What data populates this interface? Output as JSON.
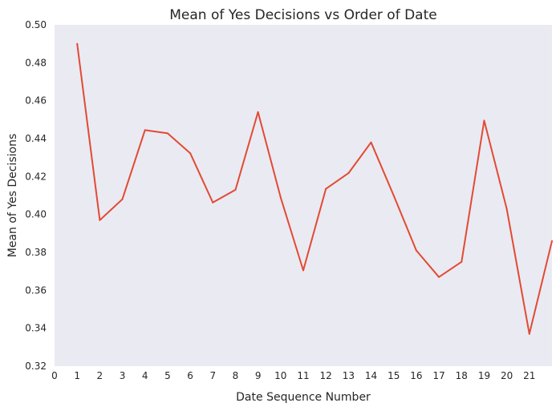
{
  "chart_data": {
    "type": "line",
    "title": "Mean of Yes Decisions vs Order of Date",
    "xlabel": "Date Sequence Number",
    "ylabel": "Mean of Yes Decisions",
    "xlim": [
      0,
      22
    ],
    "ylim": [
      0.32,
      0.5
    ],
    "grid": false,
    "background": "#eaeaf2",
    "x_ticks": [
      "0",
      "1",
      "2",
      "3",
      "4",
      "5",
      "6",
      "7",
      "8",
      "9",
      "10",
      "11",
      "12",
      "13",
      "14",
      "15",
      "16",
      "17",
      "18",
      "19",
      "20",
      "21"
    ],
    "y_ticks": [
      "0.32",
      "0.34",
      "0.36",
      "0.38",
      "0.40",
      "0.42",
      "0.44",
      "0.46",
      "0.48",
      "0.50"
    ],
    "series": [
      {
        "color": "#e24a33",
        "x": [
          1,
          2,
          3,
          4,
          5,
          6,
          7,
          8,
          9,
          10,
          11,
          12,
          13,
          14,
          15,
          16,
          17,
          18,
          19,
          20,
          21,
          22
        ],
        "y": [
          0.49,
          0.397,
          0.408,
          0.4445,
          0.4428,
          0.4323,
          0.4063,
          0.413,
          0.454,
          0.409,
          0.3705,
          0.4135,
          0.4218,
          0.438,
          0.41,
          0.381,
          0.367,
          0.375,
          0.4495,
          0.403,
          0.337,
          0.386
        ]
      }
    ]
  }
}
